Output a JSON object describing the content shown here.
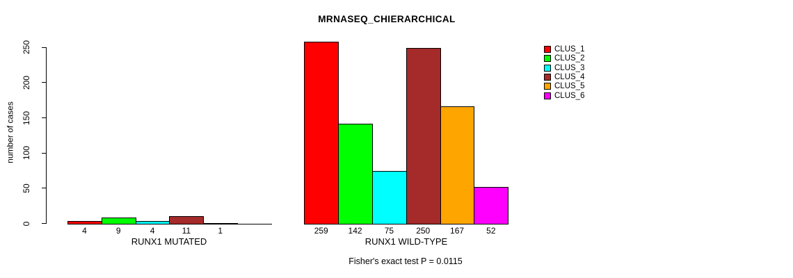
{
  "chart_data": {
    "type": "bar",
    "title": "MRNASEQ_CHIERARCHICAL",
    "ylabel": "number of cases",
    "xlabel": "",
    "ylim": [
      0,
      250
    ],
    "yticks": [
      0,
      50,
      100,
      150,
      200,
      250
    ],
    "grid": false,
    "legend": {
      "position": "right",
      "entries": [
        {
          "label": "CLUS_1",
          "color": "#FF0000"
        },
        {
          "label": "CLUS_2",
          "color": "#00FF00"
        },
        {
          "label": "CLUS_3",
          "color": "#00FFFF"
        },
        {
          "label": "CLUS_4",
          "color": "#A52A2A"
        },
        {
          "label": "CLUS_5",
          "color": "#FFA500"
        },
        {
          "label": "CLUS_6",
          "color": "#FF00FF"
        }
      ]
    },
    "series_colors": [
      "#FF0000",
      "#00FF00",
      "#00FFFF",
      "#A52A2A",
      "#FFA500",
      "#FF00FF"
    ],
    "categories": [
      "CLUS_1",
      "CLUS_2",
      "CLUS_3",
      "CLUS_4",
      "CLUS_5",
      "CLUS_6"
    ],
    "groups": [
      {
        "label": "RUNX1 MUTATED",
        "values": [
          4,
          9,
          4,
          11,
          1,
          0
        ],
        "value_labels": [
          "4",
          "9",
          "4",
          "11",
          "1",
          ""
        ]
      },
      {
        "label": "RUNX1 WILD-TYPE",
        "values": [
          259,
          142,
          75,
          250,
          167,
          52
        ],
        "value_labels": [
          "259",
          "142",
          "75",
          "250",
          "167",
          "52"
        ]
      }
    ],
    "annotation": "Fisher's exact test P = 0.0115",
    "axis_color": "#000000",
    "background_color": "#FFFFFF"
  }
}
